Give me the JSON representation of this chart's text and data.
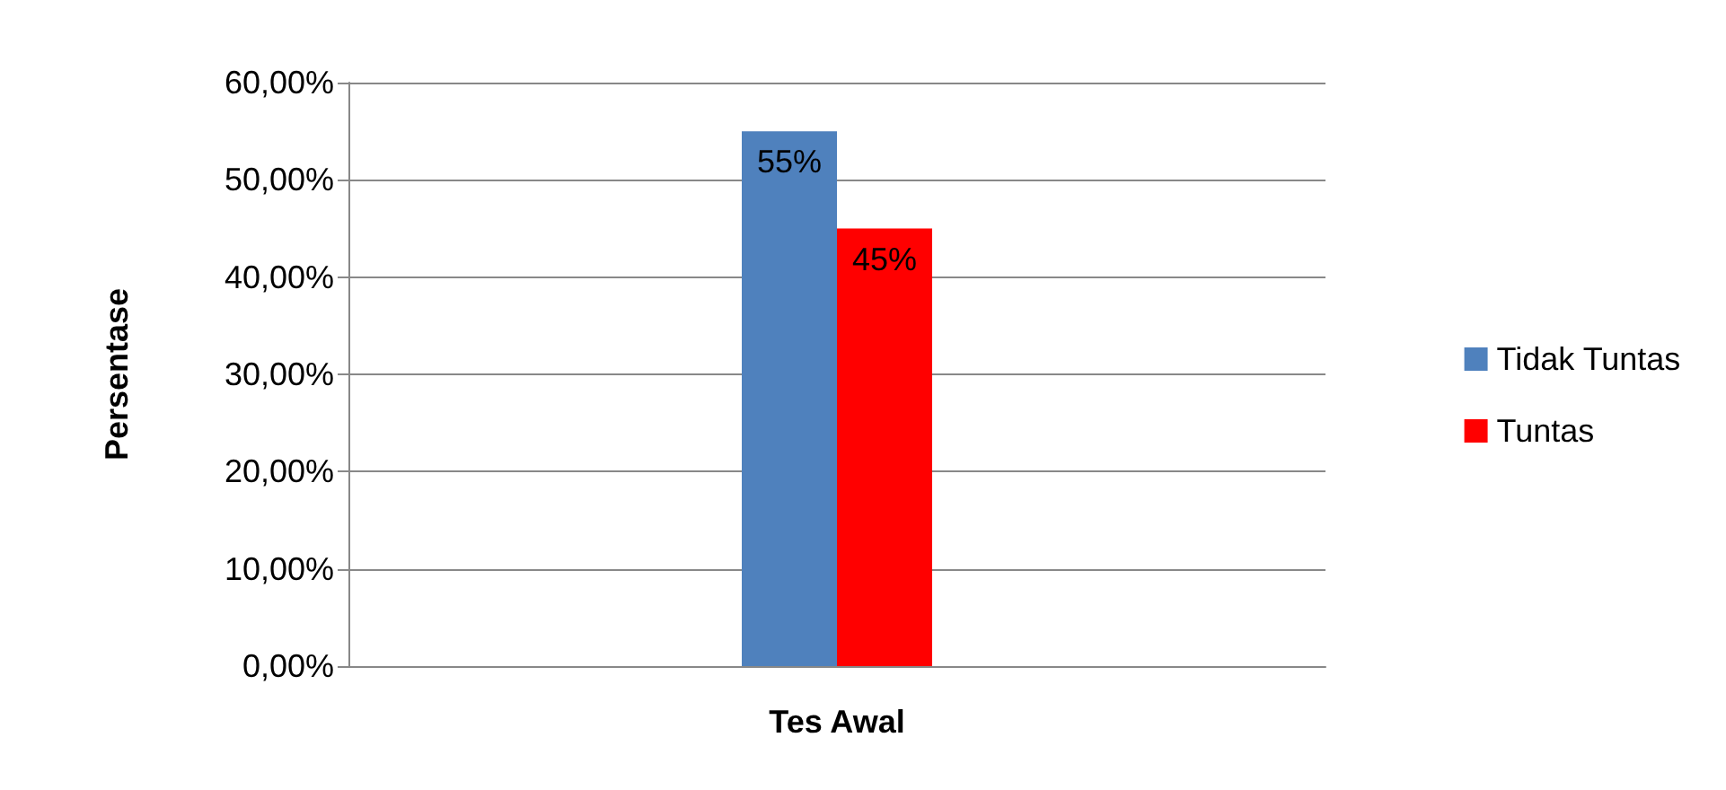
{
  "chart_data": {
    "type": "bar",
    "ylabel": "Persentase",
    "categories": [
      "Tes Awal"
    ],
    "series": [
      {
        "name": "Tidak Tuntas",
        "color": "#4f81bd",
        "values": [
          55
        ],
        "value_labels": [
          "55%"
        ]
      },
      {
        "name": "Tuntas",
        "color": "#ff0000",
        "values": [
          45
        ],
        "value_labels": [
          "45%"
        ]
      }
    ],
    "ylim": [
      0,
      60
    ],
    "yticks": [
      {
        "value": 0,
        "label": "0,00%"
      },
      {
        "value": 10,
        "label": "10,00%"
      },
      {
        "value": 20,
        "label": "20,00%"
      },
      {
        "value": 30,
        "label": "30,00%"
      },
      {
        "value": 40,
        "label": "40,00%"
      },
      {
        "value": 50,
        "label": "50,00%"
      },
      {
        "value": 60,
        "label": "60,00%"
      }
    ],
    "grid": "y",
    "legend": "right"
  }
}
